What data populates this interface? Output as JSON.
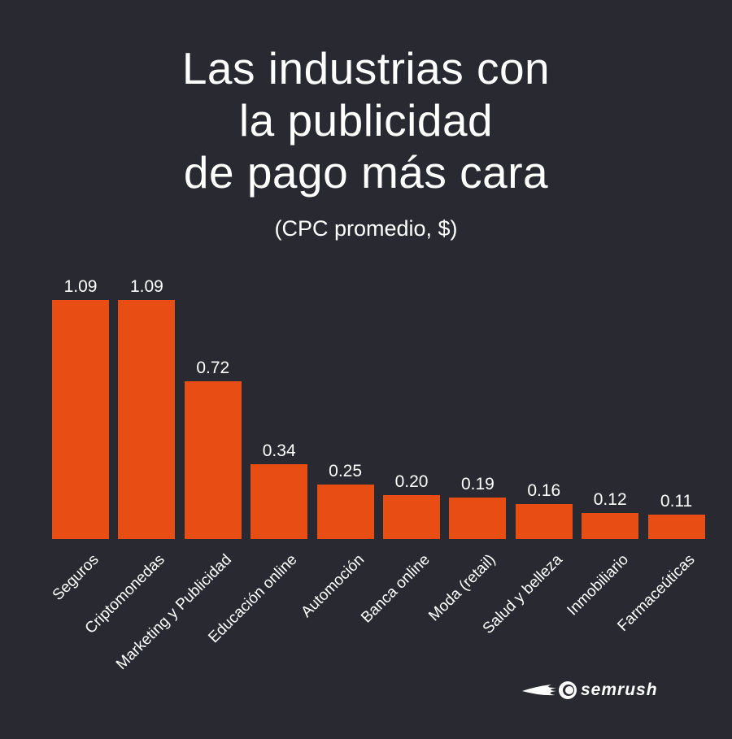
{
  "chart_data": {
    "type": "bar",
    "title_lines": [
      "Las industrias con",
      "la publicidad",
      "de pago más cara"
    ],
    "subtitle": "(CPC promedio, $)",
    "categories": [
      "Seguros",
      "Criptomonedas",
      "Marketing y Publicidad",
      "Educación online",
      "Automoción",
      "Banca online",
      "Moda (retail)",
      "Salud y belleza",
      "Inmobiliario",
      "Farmaceúticas"
    ],
    "values": [
      1.09,
      1.09,
      0.72,
      0.34,
      0.25,
      0.2,
      0.19,
      0.16,
      0.12,
      0.11
    ],
    "value_labels": [
      "1.09",
      "1.09",
      "0.72",
      "0.34",
      "0.25",
      "0.20",
      "0.19",
      "0.16",
      "0.12",
      "0.11"
    ],
    "xlabel": "",
    "ylabel": "CPC promedio ($)",
    "ylim": [
      0,
      1.09
    ],
    "grid": false,
    "bar_color": "#e84e14",
    "background": "#292932"
  },
  "brand": {
    "name": "SEMRUSH",
    "text": "semrush"
  }
}
